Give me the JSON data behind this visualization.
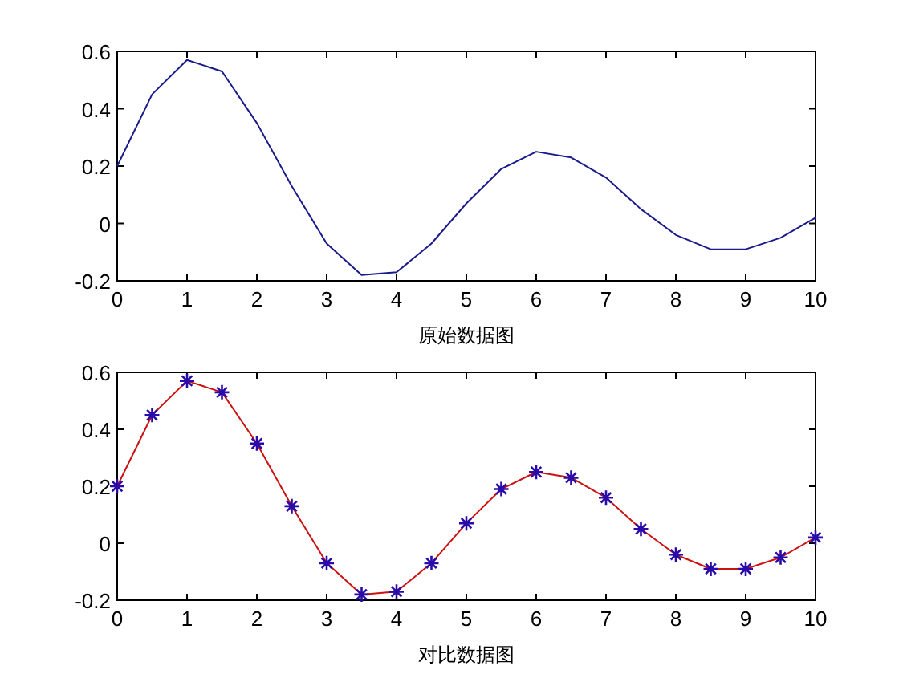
{
  "chart_data": [
    {
      "type": "line",
      "xlabel": "原始数据图",
      "x": [
        0,
        0.5,
        1,
        1.5,
        2,
        2.5,
        3,
        3.5,
        4,
        4.5,
        5,
        5.5,
        6,
        6.5,
        7,
        7.5,
        8,
        8.5,
        9,
        9.5,
        10
      ],
      "series": [
        {
          "type": "line",
          "color": "#1a1a8c",
          "values": [
            0.2,
            0.45,
            0.57,
            0.53,
            0.35,
            0.13,
            -0.07,
            -0.18,
            -0.17,
            -0.07,
            0.07,
            0.19,
            0.25,
            0.23,
            0.16,
            0.05,
            -0.04,
            -0.09,
            -0.09,
            -0.05,
            0.02
          ]
        }
      ],
      "xlim": [
        0,
        10
      ],
      "xticks": [
        0,
        1,
        2,
        3,
        4,
        5,
        6,
        7,
        8,
        9,
        10
      ],
      "ylim": [
        -0.2,
        0.6
      ],
      "yticks": [
        -0.2,
        0,
        0.2,
        0.4,
        0.6
      ],
      "grid": false
    },
    {
      "type": "line",
      "xlabel": "对比数据图",
      "x": [
        0,
        0.5,
        1,
        1.5,
        2,
        2.5,
        3,
        3.5,
        4,
        4.5,
        5,
        5.5,
        6,
        6.5,
        7,
        7.5,
        8,
        8.5,
        9,
        9.5,
        10
      ],
      "series": [
        {
          "type": "line",
          "color": "#cc1111",
          "values": [
            0.2,
            0.45,
            0.57,
            0.53,
            0.35,
            0.13,
            -0.07,
            -0.18,
            -0.17,
            -0.07,
            0.07,
            0.19,
            0.25,
            0.23,
            0.16,
            0.05,
            -0.04,
            -0.09,
            -0.09,
            -0.05,
            0.02
          ]
        },
        {
          "type": "scatter",
          "marker": "cross",
          "color": "#2a0aa8",
          "values": [
            0.2,
            0.45,
            0.57,
            0.53,
            0.35,
            0.13,
            -0.07,
            -0.18,
            -0.17,
            -0.07,
            0.07,
            0.19,
            0.25,
            0.23,
            0.16,
            0.05,
            -0.04,
            -0.09,
            -0.09,
            -0.05,
            0.02
          ]
        }
      ],
      "xlim": [
        0,
        10
      ],
      "xticks": [
        0,
        1,
        2,
        3,
        4,
        5,
        6,
        7,
        8,
        9,
        10
      ],
      "ylim": [
        -0.2,
        0.6
      ],
      "yticks": [
        -0.2,
        0,
        0.2,
        0.4,
        0.6
      ],
      "grid": false
    }
  ]
}
